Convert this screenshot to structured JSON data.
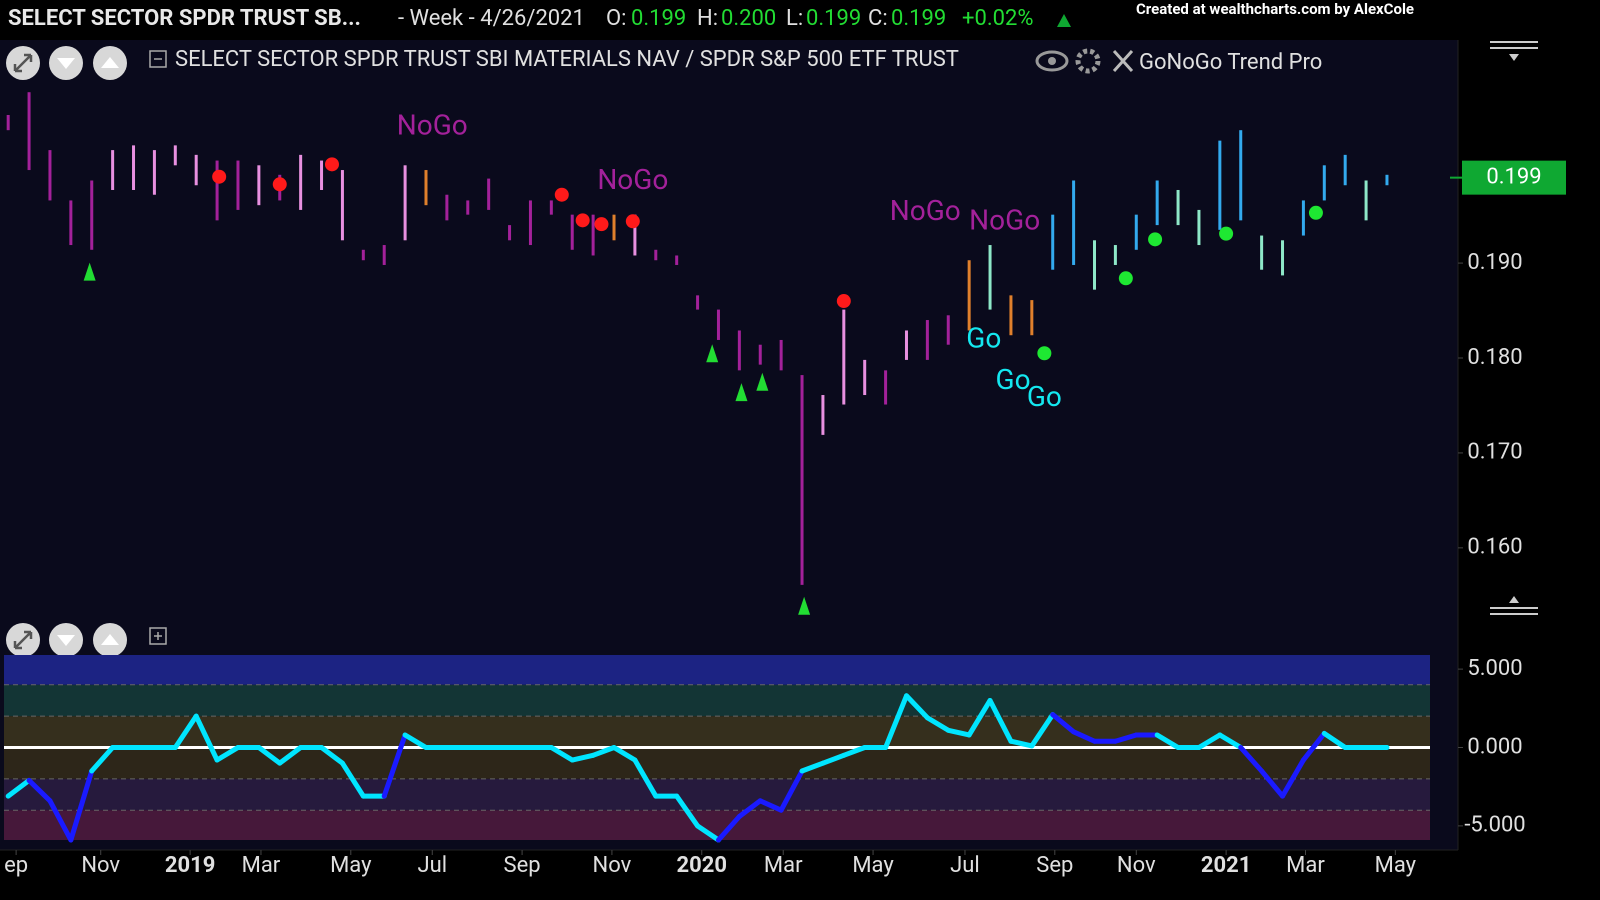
{
  "header": {
    "symbol": "SELECT SECTOR SPDR TRUST SB...",
    "period": "- Week - 4/26/2021",
    "open_label": "O:",
    "open": "0.199",
    "high_label": "H:",
    "high": "0.200",
    "low_label": "L:",
    "low": "0.199",
    "close_label": "C:",
    "close": "0.199",
    "change": "+0.02%",
    "credit": "Created at wealthcharts.com by AlexCole"
  },
  "legend": {
    "series_title": "SELECT SECTOR SPDR TRUST SBI MATERIALS NAV / SPDR S&P 500 ETF TRUST",
    "indicator": "GoNoGo Trend Pro"
  },
  "chart_data": [
    {
      "type": "range-bar",
      "ylim": [
        0.1524,
        0.2135
      ],
      "xlim": [
        -0.2,
        69.4
      ],
      "yticks": [
        {
          "value": 0.19,
          "label": "0.190"
        },
        {
          "value": 0.18,
          "label": "0.180"
        },
        {
          "value": 0.17,
          "label": "0.170"
        },
        {
          "value": 0.16,
          "label": "0.160"
        }
      ],
      "last_price": 0.199,
      "last_price_label": "0.199",
      "last_price_color": "#0fa832",
      "series": [
        {
          "name": "High",
          "values": [
            0.2056,
            0.208,
            0.2019,
            0.1966,
            0.1987,
            0.2019,
            0.2024,
            0.2019,
            0.2024,
            0.2014,
            0.2008,
            0.2008,
            0.2003,
            0.1993,
            0.2014,
            0.2008,
            0.1998,
            0.1914,
            0.1919,
            0.2003,
            0.1998,
            0.1972,
            0.1966,
            0.1989,
            0.194,
            0.1966,
            0.1966,
            0.1951,
            0.1951,
            0.1951,
            0.1951,
            0.1914,
            0.1908,
            0.1866,
            0.1851,
            0.1829,
            0.1814,
            0.1819,
            0.1782,
            0.1761,
            0.1851,
            0.1798,
            0.1787,
            0.1829,
            0.184,
            0.1845,
            0.1903,
            0.1919,
            0.1866,
            0.1861,
            0.1951,
            0.1987,
            0.1924,
            0.1919,
            0.1951,
            0.1987,
            0.1977,
            0.1956,
            0.2029,
            0.204,
            0.1929,
            0.1924,
            0.1966,
            0.2003,
            0.2014,
            0.1987,
            0.1993
          ]
        },
        {
          "name": "Low",
          "values": [
            0.204,
            0.1998,
            0.1966,
            0.1919,
            0.1914,
            0.1977,
            0.1977,
            0.1972,
            0.2003,
            0.1982,
            0.1945,
            0.1956,
            0.1961,
            0.1966,
            0.1956,
            0.1977,
            0.1924,
            0.1903,
            0.1898,
            0.1924,
            0.1961,
            0.1945,
            0.1951,
            0.1956,
            0.1924,
            0.1919,
            0.1951,
            0.1914,
            0.1908,
            0.1924,
            0.1908,
            0.1903,
            0.1898,
            0.1851,
            0.1819,
            0.1787,
            0.1793,
            0.1787,
            0.1561,
            0.1719,
            0.1751,
            0.1761,
            0.1751,
            0.1798,
            0.1798,
            0.1814,
            0.1829,
            0.1851,
            0.1824,
            0.1824,
            0.1893,
            0.1898,
            0.1872,
            0.1898,
            0.1914,
            0.194,
            0.194,
            0.1919,
            0.1935,
            0.1945,
            0.1893,
            0.1887,
            0.1929,
            0.1966,
            0.1982,
            0.1945,
            0.1982
          ]
        }
      ],
      "colors": [
        "#a3219a",
        "#a3219a",
        "#a3219a",
        "#a3219a",
        "#a3219a",
        "#e890e0",
        "#e890e0",
        "#e890e0",
        "#e890e0",
        "#e890e0",
        "#a3219a",
        "#a3219a",
        "#e890e0",
        "#a3219a",
        "#e890e0",
        "#e890e0",
        "#e890e0",
        "#a3219a",
        "#a3219a",
        "#e890e0",
        "#e0802c",
        "#a3219a",
        "#a3219a",
        "#a3219a",
        "#a3219a",
        "#a3219a",
        "#a3219a",
        "#a3219a",
        "#a3219a",
        "#e0802c",
        "#e890e0",
        "#a3219a",
        "#a3219a",
        "#a3219a",
        "#a3219a",
        "#a3219a",
        "#a3219a",
        "#a3219a",
        "#a3219a",
        "#e890e0",
        "#e890e0",
        "#e890e0",
        "#a3219a",
        "#e890e0",
        "#a3219a",
        "#a3219a",
        "#e0802c",
        "#8ee8c8",
        "#e0802c",
        "#e0802c",
        "#33aaee",
        "#33aaee",
        "#8ee8c8",
        "#8ee8c8",
        "#33aaee",
        "#33aaee",
        "#8ee8c8",
        "#8ee8c8",
        "#33aaee",
        "#33aaee",
        "#8ee8c8",
        "#8ee8c8",
        "#33aaee",
        "#33aaee",
        "#33aaee",
        "#8ee8c8",
        "#33aaee"
      ],
      "annotations": [
        {
          "text": "NoGo",
          "x": 20.3,
          "y": 0.2043,
          "color": "#a3219a"
        },
        {
          "text": "NoGo",
          "x": 29.9,
          "y": 0.1986,
          "color": "#a3219a"
        },
        {
          "text": "NoGo",
          "x": 43.9,
          "y": 0.1953,
          "color": "#a3219a"
        },
        {
          "text": "NoGo",
          "x": 47.7,
          "y": 0.1943,
          "color": "#a3219a"
        },
        {
          "text": "Go",
          "x": 46.7,
          "y": 0.1819,
          "color": "#14e8f0"
        },
        {
          "text": "Go",
          "x": 48.1,
          "y": 0.1775,
          "color": "#14e8f0"
        },
        {
          "text": "Go",
          "x": 49.6,
          "y": 0.1757,
          "color": "#14e8f0"
        }
      ],
      "signals": [
        {
          "shape": "triangle-up",
          "color": "#22dd33",
          "x": 3.9,
          "y": 0.1891
        },
        {
          "shape": "triangle-up",
          "color": "#22dd33",
          "x": 33.7,
          "y": 0.1805
        },
        {
          "shape": "triangle-up",
          "color": "#22dd33",
          "x": 35.1,
          "y": 0.1764
        },
        {
          "shape": "triangle-up",
          "color": "#22dd33",
          "x": 36.1,
          "y": 0.1775
        },
        {
          "shape": "triangle-up",
          "color": "#22dd33",
          "x": 38.1,
          "y": 0.1539
        },
        {
          "shape": "dot",
          "color": "#ff1a1a",
          "x": 10.1,
          "y": 0.1991
        },
        {
          "shape": "dot",
          "color": "#ff1a1a",
          "x": 13.0,
          "y": 0.1983
        },
        {
          "shape": "dot",
          "color": "#ff1a1a",
          "x": 15.5,
          "y": 0.2004
        },
        {
          "shape": "dot",
          "color": "#ff1a1a",
          "x": 26.5,
          "y": 0.1972
        },
        {
          "shape": "dot",
          "color": "#ff1a1a",
          "x": 27.5,
          "y": 0.1945
        },
        {
          "shape": "dot",
          "color": "#ff1a1a",
          "x": 28.4,
          "y": 0.1941
        },
        {
          "shape": "dot",
          "color": "#ff1a1a",
          "x": 29.9,
          "y": 0.1944
        },
        {
          "shape": "dot",
          "color": "#ff1a1a",
          "x": 40.0,
          "y": 0.186
        },
        {
          "shape": "dot",
          "color": "#1ee832",
          "x": 49.6,
          "y": 0.1805
        },
        {
          "shape": "dot",
          "color": "#1ee832",
          "x": 53.5,
          "y": 0.1884
        },
        {
          "shape": "dot",
          "color": "#1ee832",
          "x": 54.9,
          "y": 0.1925
        },
        {
          "shape": "dot",
          "color": "#1ee832",
          "x": 58.3,
          "y": 0.1931
        },
        {
          "shape": "dot",
          "color": "#1ee832",
          "x": 62.6,
          "y": 0.1953
        }
      ]
    },
    {
      "type": "line",
      "ylim": [
        -5.9,
        5.9
      ],
      "xlim": [
        -0.2,
        69.4
      ],
      "yticks": [
        {
          "value": 5,
          "label": "5.000"
        },
        {
          "value": 0,
          "label": "0.000"
        },
        {
          "value": -5,
          "label": "-5.000"
        }
      ],
      "band_lines": [
        4,
        2,
        -2,
        -4
      ],
      "band_colors": [
        "#1c2383",
        "#133535",
        "#352f1d",
        "#2d2619",
        "#261a3d",
        "#46183a"
      ],
      "xticks": [
        {
          "value": 0.38,
          "label": "ep"
        },
        {
          "value": 4.43,
          "label": "Nov"
        },
        {
          "value": 8.71,
          "label": "2019"
        },
        {
          "value": 12.1,
          "label": "Mar"
        },
        {
          "value": 16.4,
          "label": "May"
        },
        {
          "value": 20.3,
          "label": "Jul"
        },
        {
          "value": 24.6,
          "label": "Sep"
        },
        {
          "value": 28.9,
          "label": "Nov"
        },
        {
          "value": 33.2,
          "label": "2020"
        },
        {
          "value": 37.1,
          "label": "Mar"
        },
        {
          "value": 41.4,
          "label": "May"
        },
        {
          "value": 45.8,
          "label": "Jul"
        },
        {
          "value": 50.1,
          "label": "Sep"
        },
        {
          "value": 54.0,
          "label": "Nov"
        },
        {
          "value": 58.3,
          "label": "2021"
        },
        {
          "value": 62.1,
          "label": "Mar"
        },
        {
          "value": 66.4,
          "label": "May"
        }
      ],
      "values": [
        -3.1,
        -2.1,
        -3.4,
        -5.9,
        -1.5,
        0,
        0,
        0,
        0,
        2.0,
        -0.8,
        0,
        0,
        -1,
        0,
        0,
        -1,
        -3.1,
        -3.1,
        0.8,
        0,
        0,
        0,
        0,
        0,
        0,
        0,
        -0.8,
        -0.5,
        0,
        -0.8,
        -3.1,
        -3.1,
        -5.0,
        -5.9,
        -4.4,
        -3.4,
        -4.0,
        -1.5,
        -1.0,
        -0.5,
        0,
        0,
        3.3,
        1.9,
        1.1,
        0.8,
        3.0,
        0.4,
        0.1,
        2.1,
        1.0,
        0.4,
        0.4,
        0.8,
        0.8,
        0,
        0,
        0.8,
        0,
        -1.5,
        -3.1,
        -0.8,
        0.9,
        0,
        0,
        0
      ],
      "colors": [
        "#00e5ff",
        "#00e5ff",
        "#1a1aff",
        "#1a1aff",
        "#1a1aff",
        "#00e5ff",
        "#00e5ff",
        "#00e5ff",
        "#00e5ff",
        "#00e5ff",
        "#00e5ff",
        "#00e5ff",
        "#00e5ff",
        "#00e5ff",
        "#00e5ff",
        "#00e5ff",
        "#00e5ff",
        "#00e5ff",
        "#00e5ff",
        "#1a1aff",
        "#00e5ff",
        "#00e5ff",
        "#00e5ff",
        "#00e5ff",
        "#00e5ff",
        "#00e5ff",
        "#00e5ff",
        "#00e5ff",
        "#00e5ff",
        "#00e5ff",
        "#00e5ff",
        "#00e5ff",
        "#00e5ff",
        "#00e5ff",
        "#00e5ff",
        "#1a1aff",
        "#1a1aff",
        "#1a1aff",
        "#1a1aff",
        "#00e5ff",
        "#00e5ff",
        "#00e5ff",
        "#00e5ff",
        "#00e5ff",
        "#00e5ff",
        "#00e5ff",
        "#00e5ff",
        "#00e5ff",
        "#00e5ff",
        "#00e5ff",
        "#00e5ff",
        "#1a1aff",
        "#1a1aff",
        "#1a1aff",
        "#1a1aff",
        "#1a1aff",
        "#00e5ff",
        "#00e5ff",
        "#00e5ff",
        "#00e5ff",
        "#1a1aff",
        "#1a1aff",
        "#1a1aff",
        "#1a1aff",
        "#00e5ff",
        "#00e5ff",
        "#00e5ff"
      ],
      "zero_line_color": "#ffffff"
    }
  ]
}
